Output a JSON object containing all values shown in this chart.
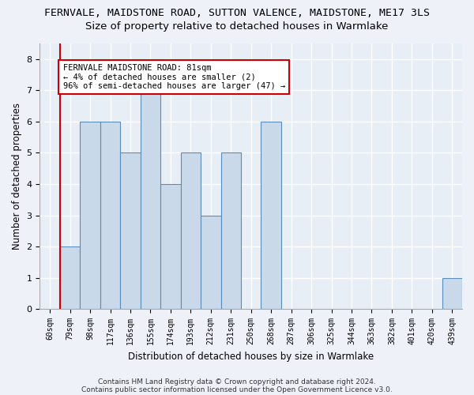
{
  "title1": "FERNVALE, MAIDSTONE ROAD, SUTTON VALENCE, MAIDSTONE, ME17 3LS",
  "title2": "Size of property relative to detached houses in Warmlake",
  "xlabel": "Distribution of detached houses by size in Warmlake",
  "ylabel": "Number of detached properties",
  "categories": [
    "60sqm",
    "79sqm",
    "98sqm",
    "117sqm",
    "136sqm",
    "155sqm",
    "174sqm",
    "193sqm",
    "212sqm",
    "231sqm",
    "250sqm",
    "268sqm",
    "287sqm",
    "306sqm",
    "325sqm",
    "344sqm",
    "363sqm",
    "382sqm",
    "401sqm",
    "420sqm",
    "439sqm"
  ],
  "values": [
    0,
    2,
    6,
    6,
    5,
    7,
    4,
    5,
    3,
    5,
    0,
    6,
    0,
    0,
    0,
    0,
    0,
    0,
    0,
    0,
    1
  ],
  "bar_color": "#c9d9ea",
  "bar_edge_color": "#5b8db8",
  "highlight_index": 1,
  "highlight_color": "#cc0000",
  "annotation_box_text": "FERNVALE MAIDSTONE ROAD: 81sqm\n← 4% of detached houses are smaller (2)\n96% of semi-detached houses are larger (47) →",
  "ylim": [
    0,
    8.5
  ],
  "yticks": [
    0,
    1,
    2,
    3,
    4,
    5,
    6,
    7,
    8
  ],
  "footer1": "Contains HM Land Registry data © Crown copyright and database right 2024.",
  "footer2": "Contains public sector information licensed under the Open Government Licence v3.0.",
  "bg_color": "#eef2f8",
  "plot_bg_color": "#e8eef6",
  "grid_color": "#ffffff",
  "title_fontsize": 9.5,
  "subtitle_fontsize": 9.5,
  "axis_label_fontsize": 8.5,
  "tick_fontsize": 7,
  "footer_fontsize": 6.5,
  "ann_fontsize": 7.5
}
